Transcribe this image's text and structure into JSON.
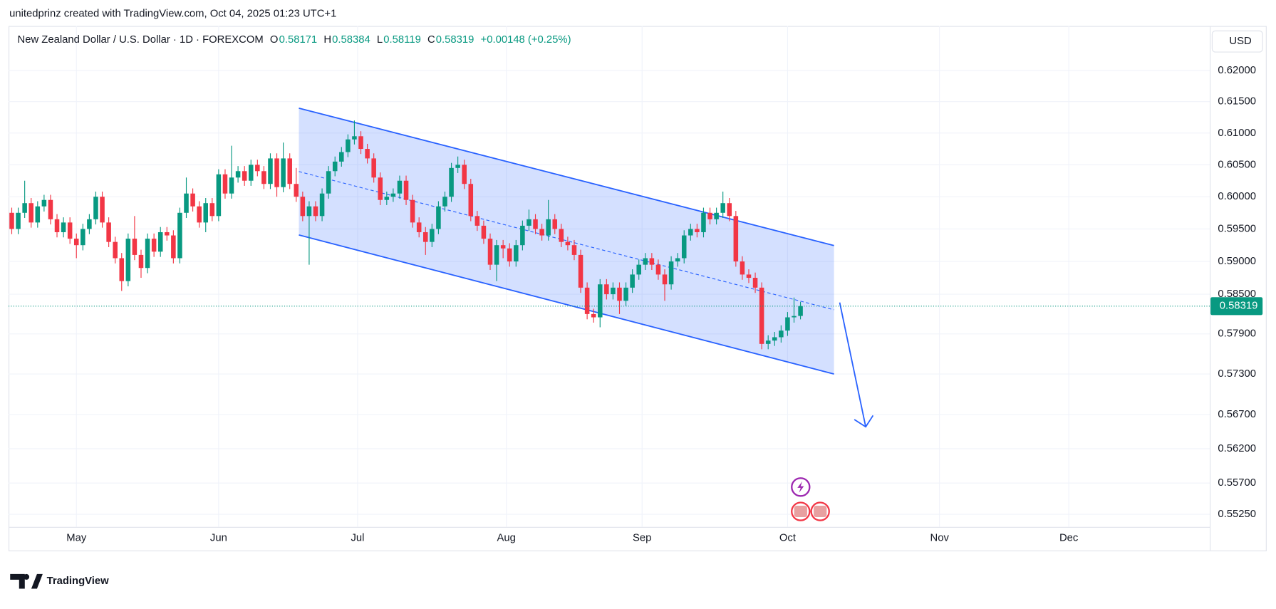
{
  "header": {
    "byline": "unitedprinz created with TradingView.com, Oct 04, 2025 01:23 UTC+1",
    "brand": "TradingView"
  },
  "chart_data": {
    "type": "candlestick",
    "title": "New Zealand Dollar / U.S. Dollar · 1D · FOREXCOM",
    "readout": [
      {
        "label": "O",
        "value": "0.58171"
      },
      {
        "label": "H",
        "value": "0.58384"
      },
      {
        "label": "L",
        "value": "0.58119"
      },
      {
        "label": "C",
        "value": "0.58319"
      }
    ],
    "change": "+0.00148 (+0.25%)",
    "currency": "USD",
    "last_price": {
      "value": 0.58319,
      "label": "0.58319"
    },
    "up_color": "#089981",
    "down_color": "#f23645",
    "log_scale": true,
    "grid": true,
    "xlim": [
      -0.5,
      185.3
    ],
    "xticks": [
      {
        "value": 10,
        "label": "May"
      },
      {
        "value": 32,
        "label": "Jun"
      },
      {
        "value": 53.5,
        "label": "Jul"
      },
      {
        "value": 76.5,
        "label": "Aug"
      },
      {
        "value": 97.5,
        "label": "Sep"
      },
      {
        "value": 120,
        "label": "Oct"
      },
      {
        "value": 143.5,
        "label": "Nov"
      },
      {
        "value": 163.5,
        "label": "Dec"
      }
    ],
    "ylim": [
      0.5507,
      0.6272
    ],
    "yticks": [
      {
        "value": 0.62,
        "label": "0.62000"
      },
      {
        "value": 0.615,
        "label": "0.61500"
      },
      {
        "value": 0.61,
        "label": "0.61000"
      },
      {
        "value": 0.605,
        "label": "0.60500"
      },
      {
        "value": 0.6,
        "label": "0.60000"
      },
      {
        "value": 0.595,
        "label": "0.59500"
      },
      {
        "value": 0.59,
        "label": "0.59000"
      },
      {
        "value": 0.585,
        "label": "0.58500"
      },
      {
        "value": 0.579,
        "label": "0.57900"
      },
      {
        "value": 0.573,
        "label": "0.57300"
      },
      {
        "value": 0.567,
        "label": "0.56700"
      },
      {
        "value": 0.562,
        "label": "0.56200"
      },
      {
        "value": 0.557,
        "label": "0.55700"
      },
      {
        "value": 0.5525,
        "label": "0.55250"
      }
    ],
    "open": [
      0.5975,
      0.595,
      0.5975,
      0.599,
      0.596,
      0.5985,
      0.5995,
      0.5965,
      0.5945,
      0.596,
      0.5935,
      0.5925,
      0.595,
      0.5965,
      0.6,
      0.596,
      0.593,
      0.5905,
      0.587,
      0.5935,
      0.591,
      0.589,
      0.5935,
      0.5915,
      0.5945,
      0.594,
      0.5905,
      0.5975,
      0.6005,
      0.5985,
      0.596,
      0.599,
      0.597,
      0.6035,
      0.6005,
      0.603,
      0.604,
      0.6025,
      0.605,
      0.604,
      0.602,
      0.606,
      0.6015,
      0.606,
      0.602,
      0.6,
      0.597,
      0.5985,
      0.597,
      0.6005,
      0.604,
      0.6055,
      0.607,
      0.609,
      0.6095,
      0.6075,
      0.606,
      0.603,
      0.5995,
      0.6,
      0.6005,
      0.6025,
      0.5995,
      0.596,
      0.5945,
      0.593,
      0.595,
      0.5985,
      0.6,
      0.6045,
      0.605,
      0.602,
      0.597,
      0.5955,
      0.5935,
      0.5895,
      0.5925,
      0.592,
      0.59,
      0.5925,
      0.5955,
      0.5965,
      0.595,
      0.594,
      0.5965,
      0.595,
      0.593,
      0.5925,
      0.591,
      0.586,
      0.582,
      0.5815,
      0.5865,
      0.585,
      0.586,
      0.584,
      0.586,
      0.588,
      0.5895,
      0.5905,
      0.5895,
      0.588,
      0.5865,
      0.59,
      0.5905,
      0.594,
      0.595,
      0.5945,
      0.5975,
      0.5965,
      0.5975,
      0.599,
      0.597,
      0.59,
      0.588,
      0.5875,
      0.586,
      0.5775,
      0.578,
      0.5785,
      0.5795,
      0.5815,
      0.58171
    ],
    "high": [
      0.5983,
      0.5983,
      0.6025,
      0.5998,
      0.5993,
      0.6003,
      0.6003,
      0.5973,
      0.5968,
      0.5968,
      0.5943,
      0.5958,
      0.5973,
      0.6008,
      0.6008,
      0.5968,
      0.5938,
      0.5913,
      0.5943,
      0.597,
      0.5918,
      0.5943,
      0.5943,
      0.5953,
      0.5953,
      0.5948,
      0.5983,
      0.603,
      0.6013,
      0.5993,
      0.5998,
      0.5998,
      0.6043,
      0.6043,
      0.608,
      0.6048,
      0.6048,
      0.6058,
      0.6058,
      0.6048,
      0.6068,
      0.6068,
      0.6085,
      0.6068,
      0.6045,
      0.6008,
      0.5993,
      0.5993,
      0.6013,
      0.6048,
      0.6063,
      0.6078,
      0.6098,
      0.612,
      0.6103,
      0.6083,
      0.6068,
      0.6038,
      0.6008,
      0.6013,
      0.6033,
      0.6033,
      0.6003,
      0.5968,
      0.5953,
      0.5958,
      0.5993,
      0.6008,
      0.6053,
      0.6063,
      0.6058,
      0.6028,
      0.5978,
      0.5963,
      0.5943,
      0.5933,
      0.5933,
      0.5928,
      0.5933,
      0.5963,
      0.598,
      0.5973,
      0.5958,
      0.5995,
      0.5973,
      0.5958,
      0.5938,
      0.5933,
      0.5918,
      0.5868,
      0.5828,
      0.5873,
      0.5873,
      0.5868,
      0.5868,
      0.5868,
      0.5888,
      0.5903,
      0.5913,
      0.5913,
      0.5903,
      0.5888,
      0.5908,
      0.5913,
      0.5948,
      0.5958,
      0.5958,
      0.5983,
      0.5983,
      0.5983,
      0.6008,
      0.5998,
      0.5978,
      0.5908,
      0.5888,
      0.5883,
      0.5868,
      0.5788,
      0.5793,
      0.5803,
      0.5823,
      0.5845,
      0.58384
    ],
    "low": [
      0.5942,
      0.5942,
      0.5967,
      0.5952,
      0.5952,
      0.5977,
      0.5957,
      0.5937,
      0.5937,
      0.5927,
      0.5905,
      0.5917,
      0.5942,
      0.5957,
      0.5952,
      0.5922,
      0.5897,
      0.5855,
      0.5862,
      0.5902,
      0.5875,
      0.5882,
      0.5907,
      0.5907,
      0.5932,
      0.5897,
      0.5897,
      0.5967,
      0.5977,
      0.5952,
      0.5945,
      0.5962,
      0.5962,
      0.5997,
      0.5997,
      0.6022,
      0.6017,
      0.6017,
      0.6032,
      0.6012,
      0.6012,
      0.6,
      0.6007,
      0.6012,
      0.5992,
      0.5962,
      0.5895,
      0.5962,
      0.5962,
      0.5997,
      0.6032,
      0.6047,
      0.6062,
      0.6082,
      0.6067,
      0.6052,
      0.6022,
      0.5987,
      0.5987,
      0.5992,
      0.5997,
      0.5987,
      0.5952,
      0.5937,
      0.591,
      0.5922,
      0.5942,
      0.5977,
      0.5992,
      0.6037,
      0.6012,
      0.5962,
      0.5947,
      0.5927,
      0.5887,
      0.587,
      0.5905,
      0.5892,
      0.5892,
      0.5917,
      0.5947,
      0.5942,
      0.5932,
      0.5932,
      0.5942,
      0.5922,
      0.5917,
      0.5902,
      0.5852,
      0.5812,
      0.5807,
      0.58,
      0.5842,
      0.5842,
      0.582,
      0.5832,
      0.5852,
      0.5872,
      0.5887,
      0.5887,
      0.5872,
      0.584,
      0.5857,
      0.5892,
      0.5897,
      0.5932,
      0.5937,
      0.5937,
      0.5957,
      0.5957,
      0.5967,
      0.5962,
      0.5892,
      0.5872,
      0.5867,
      0.5852,
      0.5767,
      0.5767,
      0.5772,
      0.5777,
      0.5787,
      0.5807,
      0.58119
    ],
    "close": [
      0.595,
      0.5975,
      0.599,
      0.596,
      0.5985,
      0.5995,
      0.5965,
      0.5945,
      0.596,
      0.5935,
      0.5925,
      0.595,
      0.5965,
      0.6,
      0.596,
      0.593,
      0.5905,
      0.587,
      0.5935,
      0.591,
      0.589,
      0.5935,
      0.5915,
      0.5945,
      0.594,
      0.5905,
      0.5975,
      0.6005,
      0.5985,
      0.596,
      0.599,
      0.597,
      0.6035,
      0.6005,
      0.603,
      0.604,
      0.6025,
      0.605,
      0.604,
      0.602,
      0.606,
      0.6015,
      0.606,
      0.602,
      0.6,
      0.597,
      0.5985,
      0.597,
      0.6005,
      0.604,
      0.6055,
      0.607,
      0.609,
      0.6095,
      0.6075,
      0.606,
      0.603,
      0.5995,
      0.6,
      0.6005,
      0.6025,
      0.5995,
      0.596,
      0.5945,
      0.593,
      0.595,
      0.5985,
      0.6,
      0.6045,
      0.605,
      0.602,
      0.597,
      0.5955,
      0.5935,
      0.5895,
      0.5925,
      0.592,
      0.59,
      0.5925,
      0.5955,
      0.5965,
      0.595,
      0.594,
      0.5965,
      0.595,
      0.593,
      0.5925,
      0.591,
      0.586,
      0.582,
      0.5815,
      0.5865,
      0.585,
      0.586,
      0.584,
      0.586,
      0.588,
      0.5895,
      0.5905,
      0.5895,
      0.588,
      0.5865,
      0.59,
      0.5905,
      0.594,
      0.595,
      0.5945,
      0.5975,
      0.5965,
      0.5975,
      0.599,
      0.597,
      0.59,
      0.588,
      0.5875,
      0.586,
      0.5775,
      0.578,
      0.5785,
      0.5795,
      0.5815,
      0.5817,
      0.58319
    ]
  }
}
